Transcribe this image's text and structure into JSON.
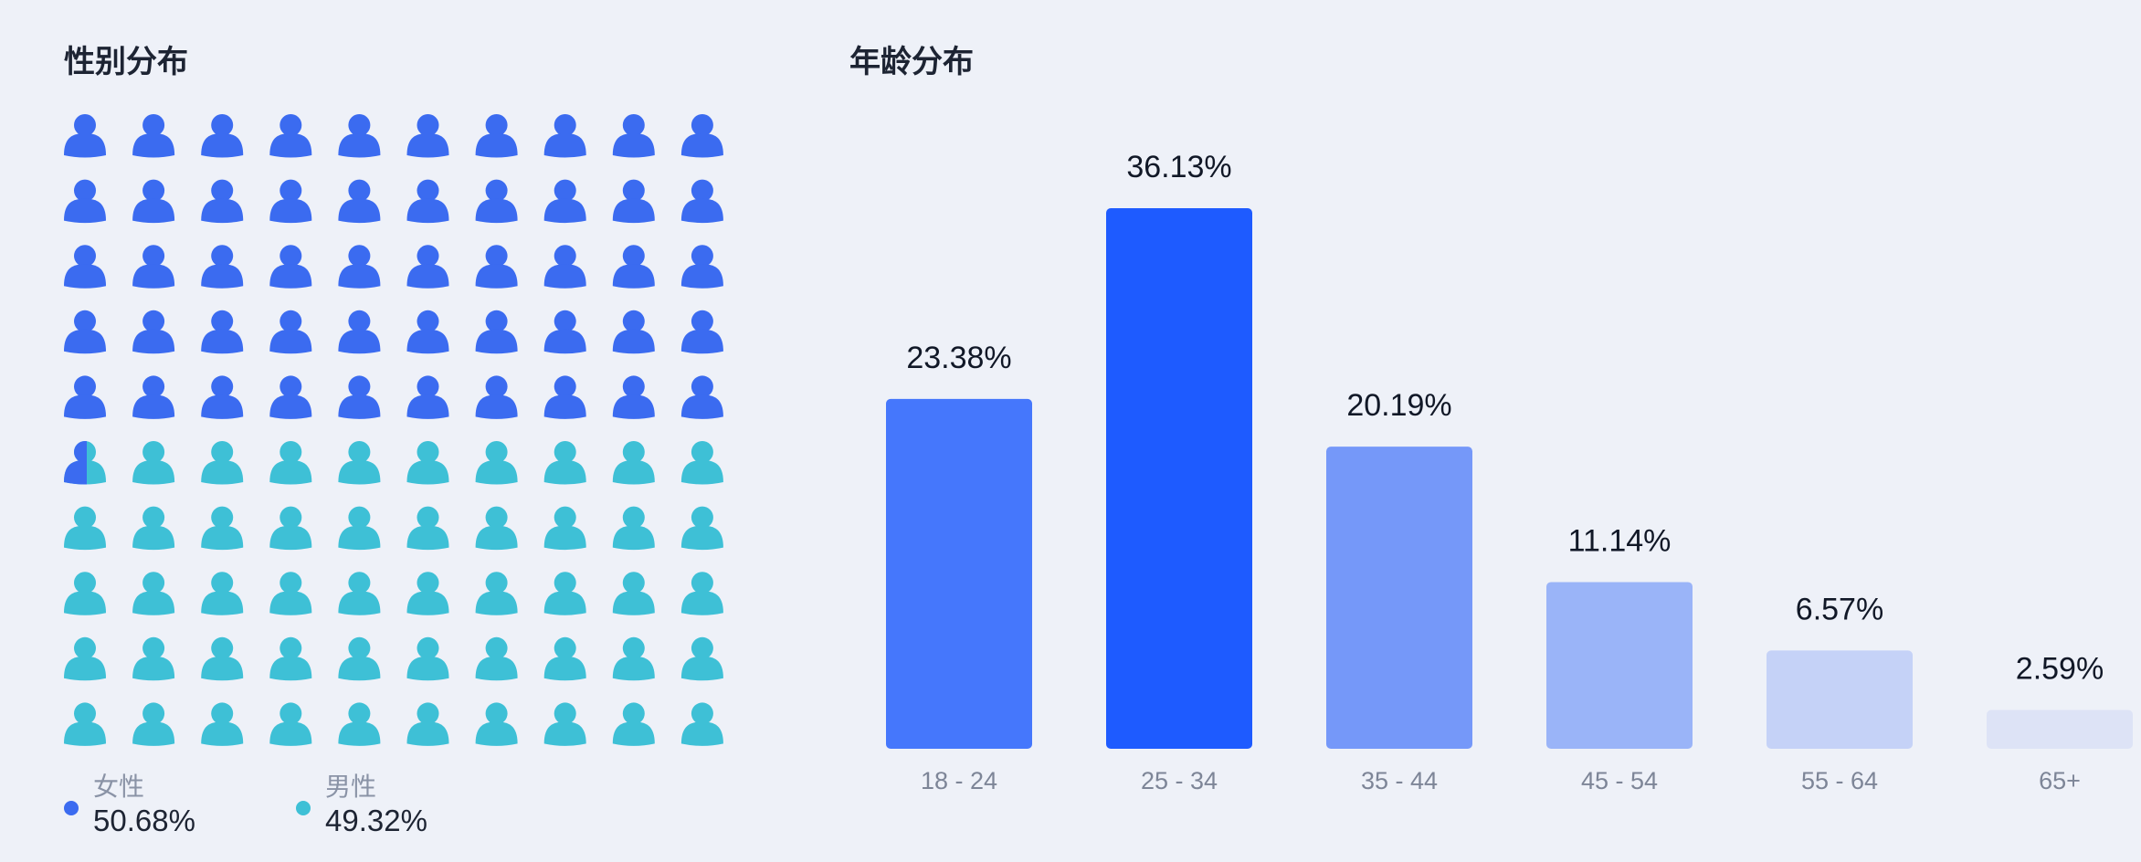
{
  "gender": {
    "title": "性别分布",
    "female_label": "女性",
    "female_value": "50.68%",
    "male_label": "男性",
    "male_value": "49.32%",
    "female_color": "#3b6bf0",
    "male_color": "#3ec0d6",
    "icon": "person-icon"
  },
  "age": {
    "title": "年龄分布"
  },
  "chart_data": [
    {
      "type": "waffle",
      "title": "性别分布",
      "grid": {
        "rows": 10,
        "cols": 10
      },
      "categories": [
        "女性",
        "男性"
      ],
      "values": [
        50.68,
        49.32
      ],
      "labels": [
        "50.68%",
        "49.32%"
      ],
      "colors": [
        "#3b6bf0",
        "#3ec0d6"
      ],
      "legend": "bottom-left"
    },
    {
      "type": "bar",
      "title": "年龄分布",
      "categories": [
        "18 - 24",
        "25 - 34",
        "35 - 44",
        "45 - 54",
        "55 - 64",
        "65+"
      ],
      "values": [
        23.38,
        36.13,
        20.19,
        11.14,
        6.57,
        2.59
      ],
      "labels": [
        "23.38%",
        "36.13%",
        "20.19%",
        "11.14%",
        "6.57%",
        "2.59%"
      ],
      "colors": [
        "#4577fc",
        "#1e5bff",
        "#7598f9",
        "#9ab4f8",
        "#c5d2f7",
        "#dde3f6"
      ],
      "ylim": [
        0,
        36.13
      ],
      "grid": false
    }
  ]
}
